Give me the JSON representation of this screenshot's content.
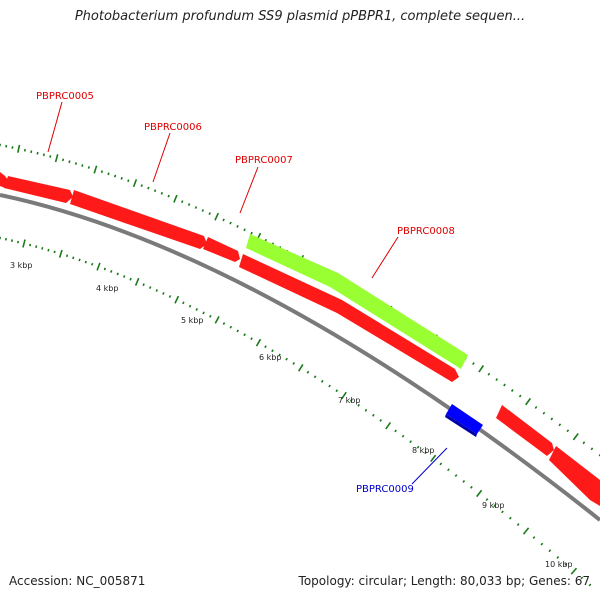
{
  "title": "Photobacterium profundum SS9 plasmid pPBPR1, complete sequen...",
  "accession": "Accession: NC_005871",
  "summary": "Topology: circular; Length: 80,033 bp; Genes: 67",
  "colors": {
    "gene_red": "#ff0000",
    "gene_green": "#99ff33",
    "gene_blue": "#0000ff",
    "label_red": "#dd0000",
    "label_blue": "#0000cc",
    "backbone": "#7a7a7a",
    "tick": "#1a7a1a"
  },
  "kbp_labels": [
    "3 kbp",
    "4 kbp",
    "5 kbp",
    "6 kbp",
    "7 kbp",
    "8 kbp",
    "9 kbp",
    "10 kbp"
  ],
  "gene_labels": [
    {
      "id": "PBPRC0005",
      "color": "red"
    },
    {
      "id": "PBPRC0006",
      "color": "red"
    },
    {
      "id": "PBPRC0007",
      "color": "red"
    },
    {
      "id": "PBPRC0008",
      "color": "red"
    },
    {
      "id": "PBPRC0009",
      "color": "blue"
    }
  ]
}
